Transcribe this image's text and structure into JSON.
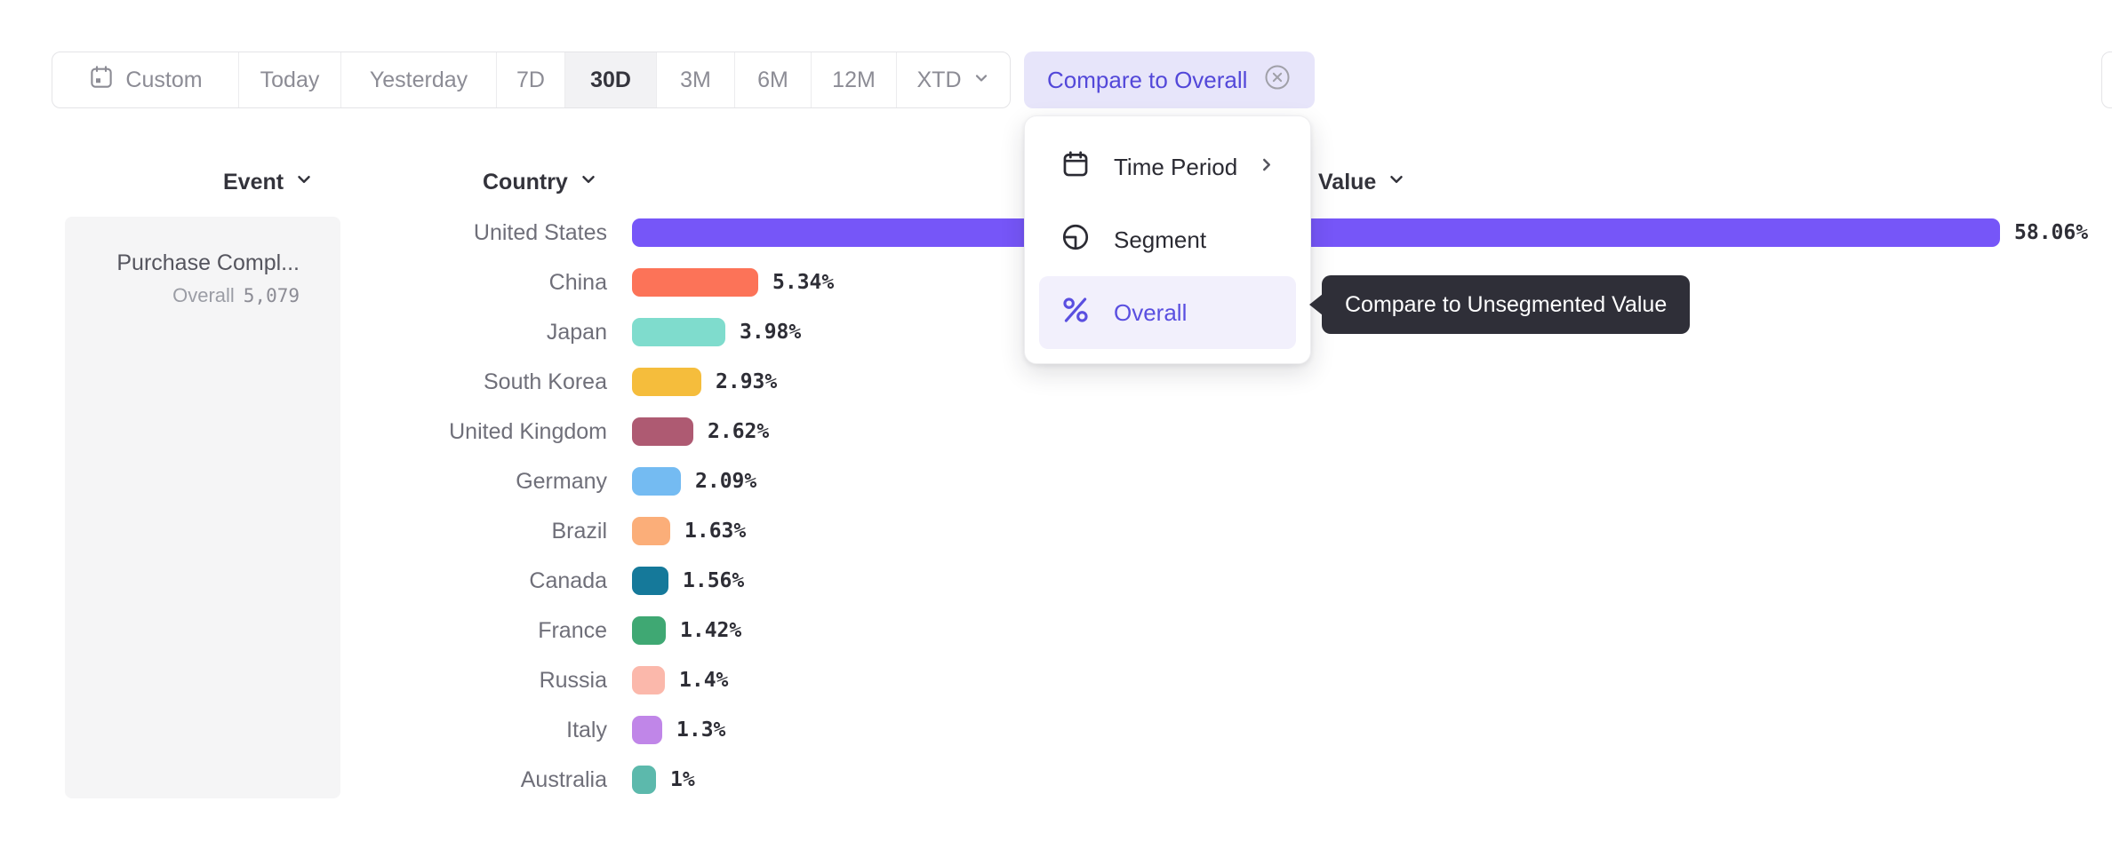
{
  "toolbar": {
    "time_buttons": [
      "Custom",
      "Today",
      "Yesterday",
      "7D",
      "30D",
      "3M",
      "6M",
      "12M",
      "XTD"
    ],
    "selected": "30D",
    "compare_button": {
      "label": "Compare to Overall"
    }
  },
  "columns": {
    "event_label": "Event",
    "country_label": "Country",
    "value_label": "Value"
  },
  "event_panel": {
    "event_name": "Purchase Compl...",
    "overall_label": "Overall",
    "overall_value": "5,079"
  },
  "menu": {
    "items": [
      {
        "label": "Time Period",
        "icon": "calendar-icon",
        "has_submenu": true,
        "selected": false
      },
      {
        "label": "Segment",
        "icon": "segment-icon",
        "has_submenu": false,
        "selected": false
      },
      {
        "label": "Overall",
        "icon": "percent-icon",
        "has_submenu": false,
        "selected": true
      }
    ]
  },
  "tooltip": {
    "text": "Compare to Unsegmented Value"
  },
  "chart_data": {
    "type": "bar",
    "orientation": "horizontal",
    "event": "Purchase Compl...",
    "categories": [
      "United States",
      "China",
      "Japan",
      "South Korea",
      "United Kingdom",
      "Germany",
      "Brazil",
      "Canada",
      "France",
      "Russia",
      "Italy",
      "Australia"
    ],
    "values": [
      58.06,
      5.34,
      3.98,
      2.93,
      2.62,
      2.09,
      1.63,
      1.56,
      1.42,
      1.4,
      1.3,
      1
    ],
    "value_labels": [
      "58.06%",
      "5.34%",
      "3.98%",
      "2.93%",
      "2.62%",
      "2.09%",
      "1.63%",
      "1.56%",
      "1.42%",
      "1.4%",
      "1.3%",
      "1%"
    ],
    "bar_colors": [
      "#7656F8",
      "#FC7358",
      "#7FDCCD",
      "#F5BD3C",
      "#AE5A72",
      "#74BBF2",
      "#FBAE79",
      "#15799A",
      "#3FA873",
      "#FBB8AB",
      "#C086E8",
      "#5CB9AC"
    ],
    "xlim": [
      0,
      58.06
    ],
    "grid": false,
    "legend": false
  },
  "colors": {
    "accent_purple": "#5A4FE0",
    "compare_pill_bg": "#E7E5FA",
    "compare_pill_text": "#5348D9",
    "selected_time_bg": "#F2F2F4",
    "event_panel_bg": "#F5F5F6",
    "tooltip_bg": "#2F2F38",
    "menu_highlight_bg": "#F2F0FC"
  }
}
